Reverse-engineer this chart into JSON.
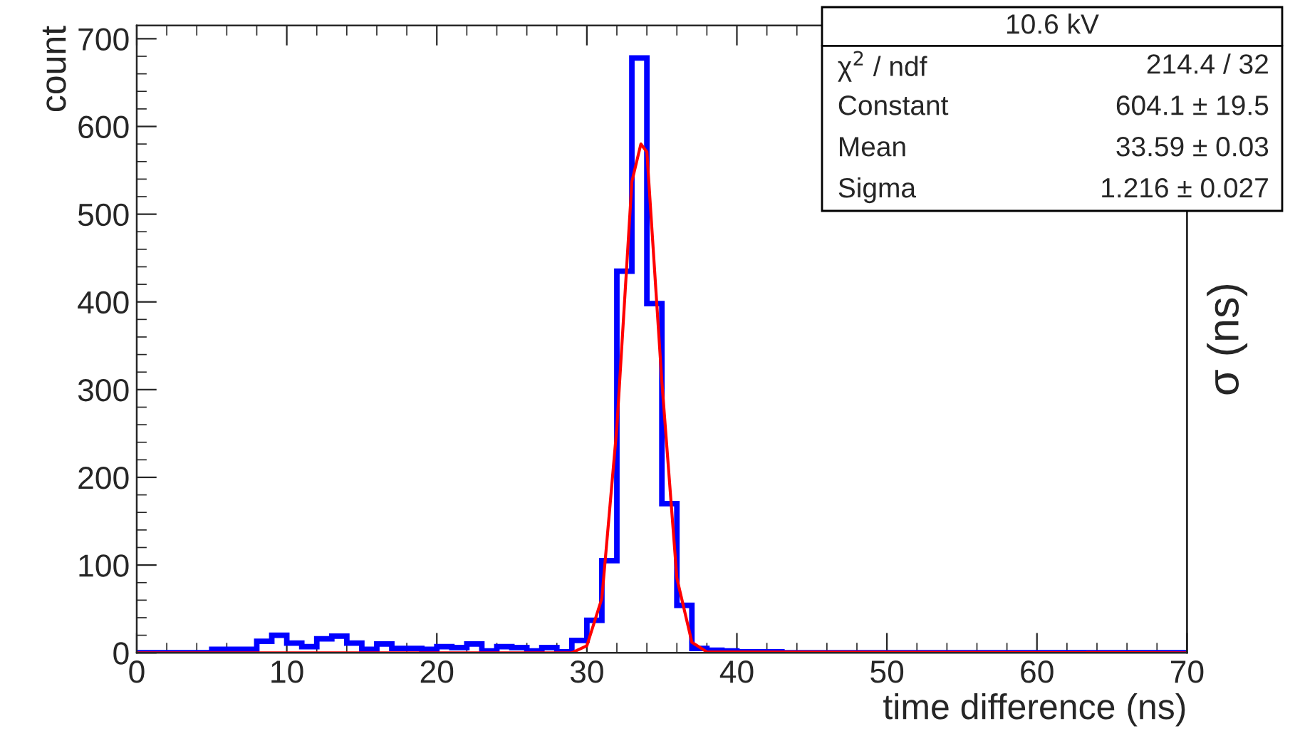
{
  "chart_data": {
    "type": "histogram",
    "title": "10.6 kV",
    "xlabel": "time difference (ns)",
    "ylabel": "count",
    "y2label": "σ (ns)",
    "series": [
      {
        "color": "#0000ff",
        "bins": [
          0,
          1,
          2,
          3,
          4,
          5,
          6,
          7,
          8,
          9,
          10,
          11,
          12,
          13,
          14,
          15,
          16,
          17,
          18,
          19,
          20,
          21,
          22,
          23,
          24,
          25,
          26,
          27,
          28,
          29,
          30,
          31,
          32,
          33,
          34,
          35,
          36,
          37,
          38,
          39,
          40,
          41,
          42,
          43,
          44,
          45,
          46,
          47,
          48,
          49,
          50,
          51,
          52,
          53,
          54,
          55,
          56,
          57,
          58,
          59,
          60,
          61,
          62,
          63,
          64,
          65,
          66,
          67,
          68,
          69,
          70
        ],
        "values": [
          0,
          0,
          0,
          0,
          0,
          4,
          4,
          4,
          13,
          20,
          11,
          7,
          16,
          19,
          11,
          4,
          10,
          5,
          5,
          4,
          7,
          6,
          10,
          2,
          7,
          6,
          2,
          6,
          1,
          14,
          37,
          105,
          435,
          678,
          398,
          170,
          54,
          5,
          3,
          2,
          1,
          1,
          1,
          0,
          0,
          0,
          0,
          0,
          0,
          0,
          0,
          0,
          0,
          0,
          0,
          0,
          0,
          0,
          0,
          0,
          0,
          0,
          0,
          0,
          0,
          0,
          0,
          0,
          0,
          0
        ]
      },
      {
        "type": "line",
        "color": "#ff0000",
        "x": [
          0,
          29,
          30,
          31,
          32,
          33,
          33.6,
          34,
          35,
          36,
          37,
          38,
          70
        ],
        "values": [
          0,
          0,
          8,
          62,
          257,
          537,
          580,
          571,
          309,
          85,
          12,
          1,
          0
        ]
      }
    ],
    "xlim": [
      0,
      70
    ],
    "ylim": [
      0,
      715
    ],
    "xticks": [
      0,
      10,
      20,
      30,
      40,
      50,
      60,
      70
    ],
    "yticks": [
      0,
      100,
      200,
      300,
      400,
      500,
      600,
      700
    ],
    "annotations": [
      "χ$^{2}$ / ndf",
      "214.4 / 32",
      "Constant",
      "604.1 ± 19.5",
      "Mean",
      "33.59 ± 0.03",
      "Sigma",
      "1.216 ± 0.027"
    ],
    "grid": false,
    "legend": false
  }
}
